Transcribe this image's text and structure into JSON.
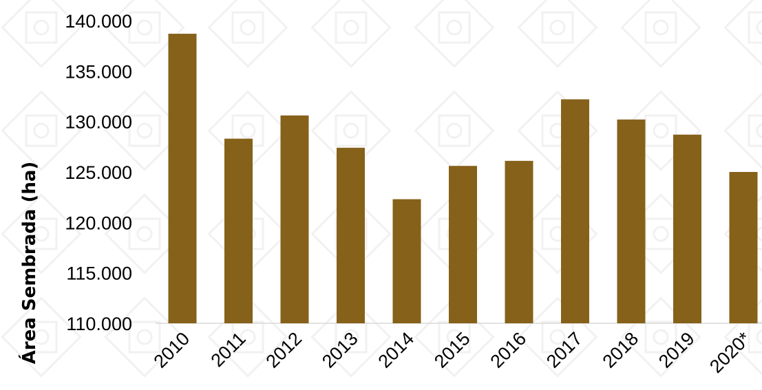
{
  "chart_data": {
    "type": "bar",
    "title": "",
    "xlabel": "",
    "ylabel": "Área Sembrada (ha)",
    "categories": [
      "2010",
      "2011",
      "2012",
      "2013",
      "2014",
      "2015",
      "2016",
      "2017",
      "2018",
      "2019",
      "2020*"
    ],
    "values": [
      138700,
      128300,
      130600,
      127400,
      122300,
      125600,
      126100,
      132200,
      130200,
      128700,
      125000
    ],
    "ylim": [
      110000,
      140000
    ],
    "yticks": [
      110000,
      115000,
      120000,
      125000,
      130000,
      135000,
      140000
    ],
    "ytick_labels": [
      "110.000",
      "115.000",
      "120.000",
      "125.000",
      "130.000",
      "135.000",
      "140.000"
    ],
    "grid": false,
    "legend": "none",
    "bar_color": "#86611a"
  }
}
